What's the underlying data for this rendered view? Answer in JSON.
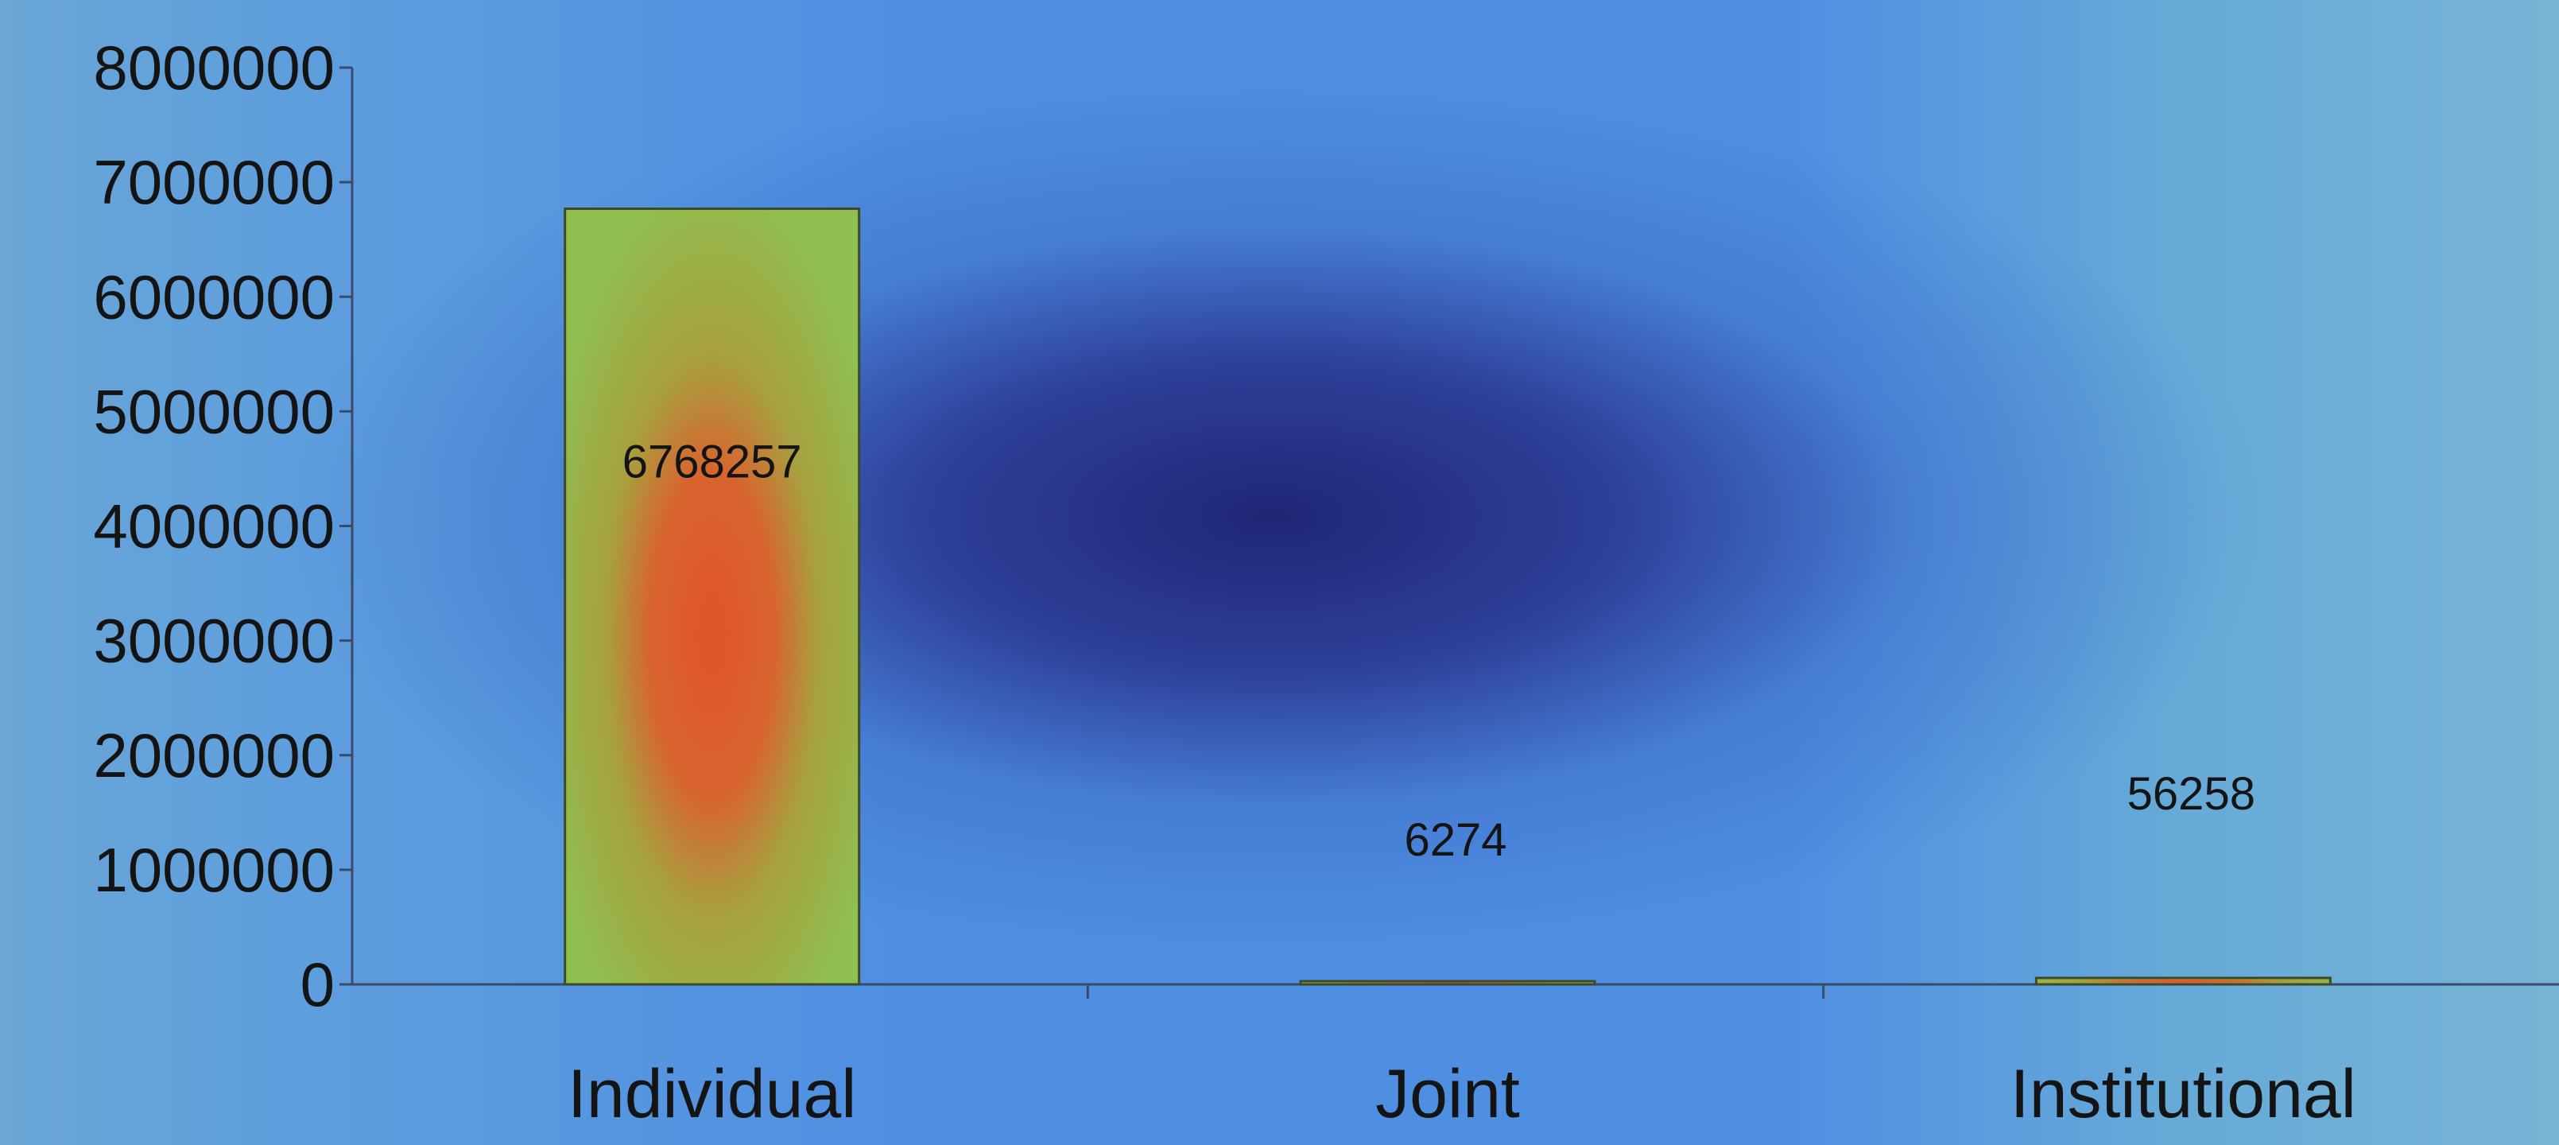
{
  "chart_data": {
    "type": "bar",
    "title": "",
    "xlabel": "",
    "ylabel": "",
    "categories": [
      "Individual",
      "Joint",
      "Institutional"
    ],
    "values": [
      6768257,
      6274,
      56258
    ],
    "data_labels": [
      "6768257",
      "6274",
      "56258"
    ],
    "yticks": [
      "0",
      "1000000",
      "2000000",
      "3000000",
      "4000000",
      "5000000",
      "6000000",
      "7000000",
      "8000000"
    ],
    "ylim": [
      0,
      8000000
    ],
    "grid": false,
    "legend": "none",
    "colors": {
      "bar_fill": "#8fbf4f",
      "bar_center": "#e0532a",
      "bar_stroke": "#3a4a2a",
      "axis": "#3a4a6a"
    }
  }
}
